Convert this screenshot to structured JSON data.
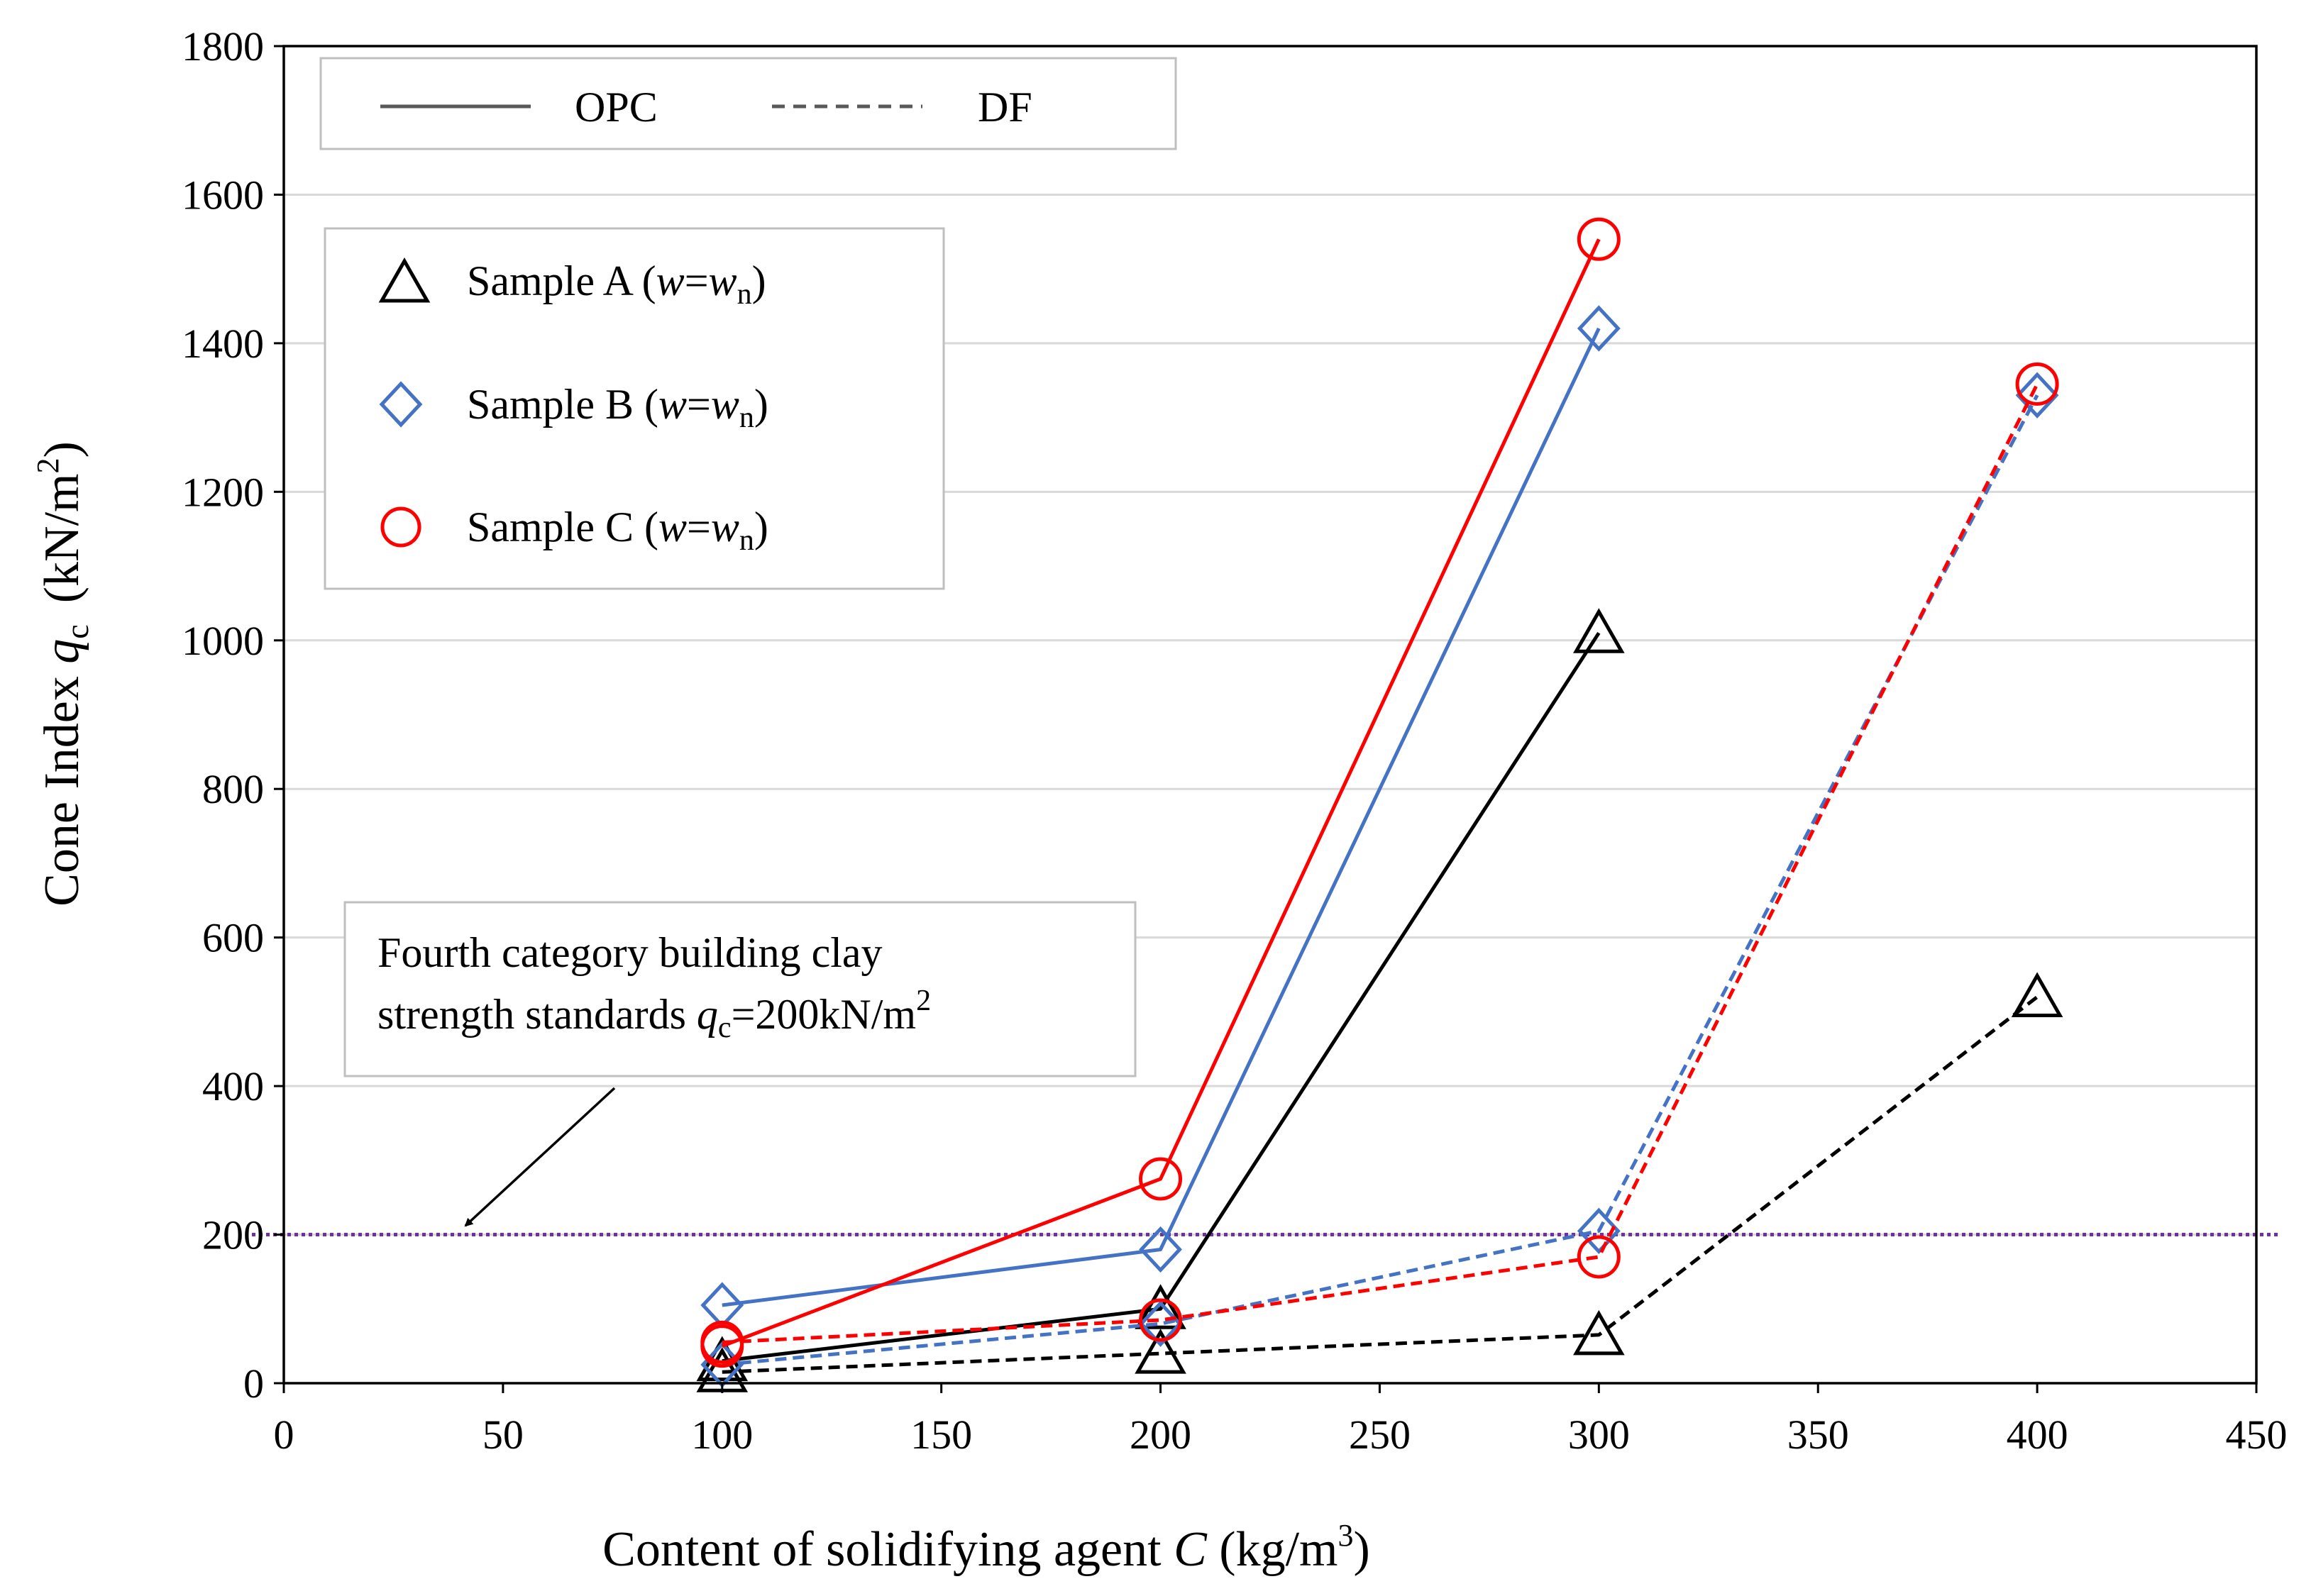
{
  "chart_data": {
    "type": "line",
    "xlabel": {
      "prefix": "Content of solidifying agent ",
      "var": "C",
      "unit": " (kg/m",
      "sup": "3",
      "close": ")"
    },
    "ylabel": {
      "prefix": "Cone Index ",
      "var": "q",
      "sub": "c",
      "unit": "(kN/m",
      "sup": "2",
      "close": ")"
    },
    "xlim": [
      0,
      450
    ],
    "ylim": [
      0,
      1800
    ],
    "xticks": [
      "0",
      "50",
      "100",
      "150",
      "200",
      "250",
      "300",
      "350",
      "400",
      "450"
    ],
    "yticks": [
      "0",
      "200",
      "400",
      "600",
      "800",
      "1000",
      "1200",
      "1400",
      "1600",
      "1800"
    ],
    "grid": "horizontal",
    "reference_line": {
      "y": 200,
      "color": "#7030a0"
    },
    "annotation": {
      "line1": "Fourth category building clay",
      "line2_prefix": "strength standards ",
      "line2_var": "q",
      "line2_sub": "c",
      "line2_suffix": "=200kN/m",
      "line2_sup": "2"
    },
    "legend_method": [
      {
        "label": "OPC",
        "style": "solid"
      },
      {
        "label": "DF",
        "style": "dashed"
      }
    ],
    "legend_samples": [
      {
        "key": "A",
        "prefix": "Sample A (",
        "var1": "w",
        "eq": "=",
        "var2": "w",
        "sub": "n",
        "close": ")",
        "marker": "triangle",
        "color": "#000000"
      },
      {
        "key": "B",
        "prefix": "Sample B (",
        "var1": "w",
        "eq": "=",
        "var2": "w",
        "sub": "n",
        "close": ")",
        "marker": "diamond",
        "color": "#4472c4"
      },
      {
        "key": "C",
        "prefix": "Sample C (",
        "var1": "w",
        "eq": "=",
        "var2": "w",
        "sub": "n",
        "close": ")",
        "marker": "circle",
        "color": "#ff0000"
      }
    ],
    "series": [
      {
        "name": "Sample A OPC",
        "sample": "A",
        "method": "OPC",
        "marker": "triangle",
        "color": "#000000",
        "x": [
          100,
          200,
          300
        ],
        "y": [
          30,
          100,
          1010
        ]
      },
      {
        "name": "Sample A DF",
        "sample": "A",
        "method": "DF",
        "marker": "triangle",
        "color": "#000000",
        "x": [
          100,
          200,
          300,
          400
        ],
        "y": [
          15,
          40,
          65,
          520
        ]
      },
      {
        "name": "Sample B OPC",
        "sample": "B",
        "method": "OPC",
        "marker": "diamond",
        "color": "#4472c4",
        "x": [
          100,
          200,
          300
        ],
        "y": [
          105,
          180,
          1420
        ]
      },
      {
        "name": "Sample B DF",
        "sample": "B",
        "method": "DF",
        "marker": "diamond",
        "color": "#4472c4",
        "x": [
          100,
          200,
          300,
          400
        ],
        "y": [
          25,
          80,
          205,
          1330
        ]
      },
      {
        "name": "Sample C OPC",
        "sample": "C",
        "method": "OPC",
        "marker": "circle",
        "color": "#ff0000",
        "x": [
          100,
          200,
          300
        ],
        "y": [
          50,
          275,
          1540
        ]
      },
      {
        "name": "Sample C DF",
        "sample": "C",
        "method": "DF",
        "marker": "circle",
        "color": "#ff0000",
        "x": [
          100,
          200,
          300,
          400
        ],
        "y": [
          55,
          85,
          170,
          1345
        ]
      }
    ]
  }
}
